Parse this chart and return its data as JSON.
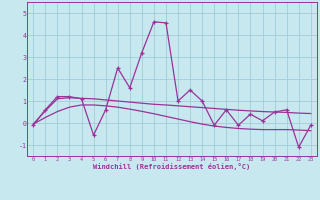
{
  "xlabel": "Windchill (Refroidissement éolien,°C)",
  "bg_color": "#c8e8f0",
  "grid_color": "#a0ccd8",
  "line_color": "#993399",
  "x": [
    0,
    1,
    2,
    3,
    4,
    5,
    6,
    7,
    8,
    9,
    10,
    11,
    12,
    13,
    14,
    15,
    16,
    17,
    18,
    19,
    20,
    21,
    22,
    23
  ],
  "y_main": [
    -0.1,
    0.6,
    1.2,
    1.2,
    1.1,
    -0.55,
    0.6,
    2.5,
    1.6,
    3.2,
    4.6,
    4.55,
    1.0,
    1.5,
    1.0,
    -0.1,
    0.6,
    -0.1,
    0.4,
    0.1,
    0.5,
    0.6,
    -1.1,
    -0.1
  ],
  "y_line1": [
    -0.05,
    0.55,
    1.1,
    1.15,
    1.12,
    1.1,
    1.05,
    1.0,
    0.95,
    0.9,
    0.85,
    0.82,
    0.78,
    0.74,
    0.7,
    0.66,
    0.62,
    0.58,
    0.55,
    0.52,
    0.5,
    0.48,
    0.45,
    0.43
  ],
  "y_line2": [
    -0.05,
    0.25,
    0.52,
    0.72,
    0.82,
    0.82,
    0.78,
    0.72,
    0.63,
    0.53,
    0.42,
    0.3,
    0.18,
    0.06,
    -0.05,
    -0.14,
    -0.2,
    -0.25,
    -0.28,
    -0.3,
    -0.3,
    -0.3,
    -0.32,
    -0.35
  ],
  "ylim": [
    -1.5,
    5.5
  ],
  "yticks": [
    -1,
    0,
    1,
    2,
    3,
    4,
    5
  ],
  "xlim": [
    -0.5,
    23.5
  ]
}
